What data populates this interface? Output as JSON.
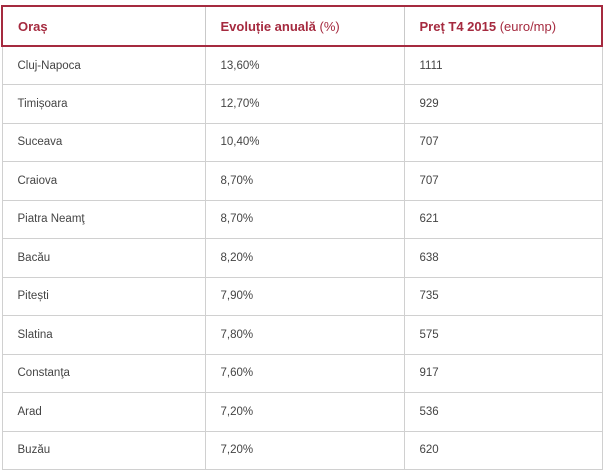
{
  "table": {
    "headers": [
      {
        "label": "Oraș",
        "unit": ""
      },
      {
        "label": "Evoluție anuală",
        "unit": " (%)"
      },
      {
        "label": "Preț T4 2015",
        "unit": " (euro/mp)"
      }
    ],
    "rows": [
      {
        "city": "Cluj-Napoca",
        "growth": "13,60%",
        "price": "1111"
      },
      {
        "city": "Timișoara",
        "growth": "12,70%",
        "price": "929"
      },
      {
        "city": "Suceava",
        "growth": "10,40%",
        "price": "707"
      },
      {
        "city": "Craiova",
        "growth": "8,70%",
        "price": "707"
      },
      {
        "city": "Piatra Neamţ",
        "growth": "8,70%",
        "price": "621"
      },
      {
        "city": "Bacău",
        "growth": "8,20%",
        "price": "638"
      },
      {
        "city": "Pitești",
        "growth": "7,90%",
        "price": "735"
      },
      {
        "city": "Slatina",
        "growth": "7,80%",
        "price": "575"
      },
      {
        "city": "Constanţa",
        "growth": "7,60%",
        "price": "917"
      },
      {
        "city": "Arad",
        "growth": "7,20%",
        "price": "536"
      },
      {
        "city": "Buzău",
        "growth": "7,20%",
        "price": "620"
      }
    ],
    "colors": {
      "accent": "#a52a3f",
      "text": "#444444",
      "border": "#d0d0d0"
    }
  }
}
